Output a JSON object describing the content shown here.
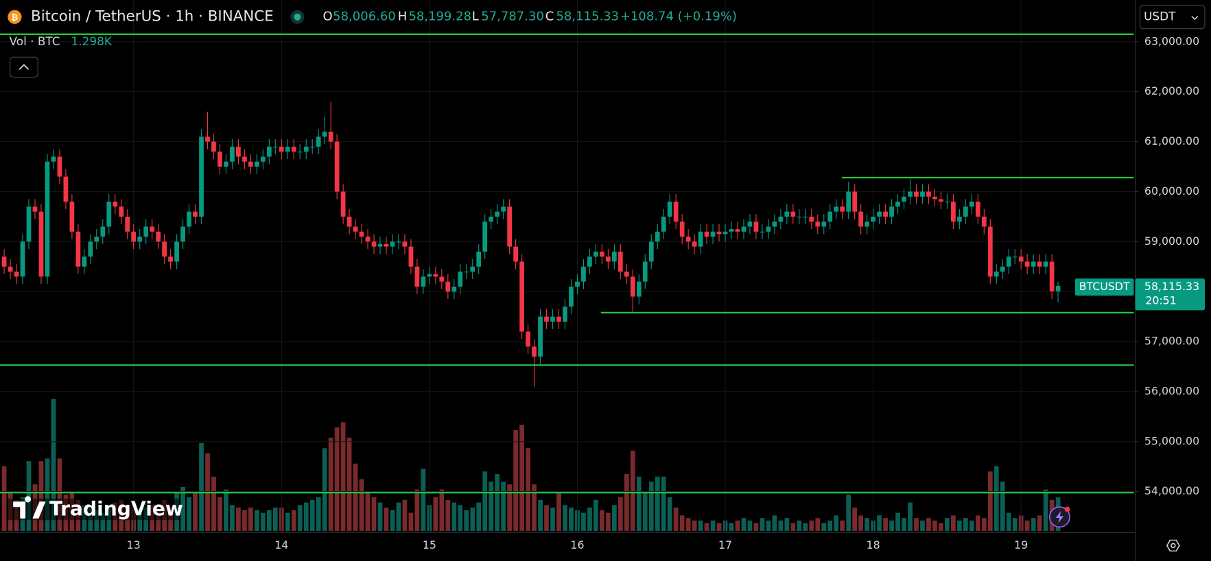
{
  "chart_data": {
    "type": "candlestick",
    "title": "Bitcoin / TetherUS · 1h · BINANCE",
    "categories": [
      null,
      null,
      null,
      null,
      null,
      null,
      null,
      null,
      null,
      null,
      null,
      null,
      null,
      null,
      null,
      null,
      null,
      null,
      null,
      null,
      null,
      "13",
      null,
      null,
      null,
      null,
      null,
      null,
      null,
      null,
      null,
      null,
      null,
      null,
      null,
      null,
      null,
      null,
      null,
      null,
      null,
      null,
      null,
      null,
      null,
      "14",
      null,
      null,
      null,
      null,
      null,
      null,
      null,
      null,
      null,
      null,
      null,
      null,
      null,
      null,
      null,
      null,
      null,
      null,
      null,
      null,
      null,
      null,
      null,
      "15",
      null,
      null,
      null,
      null,
      null,
      null,
      null,
      null,
      null,
      null,
      null,
      null,
      null,
      null,
      null,
      null,
      null,
      null,
      null,
      null,
      null,
      null,
      null,
      "16",
      null,
      null,
      null,
      null,
      null,
      null,
      null,
      null,
      null,
      null,
      null,
      null,
      null,
      null,
      null,
      null,
      null,
      null,
      null,
      null,
      null,
      null,
      null,
      "17",
      null,
      null,
      null,
      null,
      null,
      null,
      null,
      null,
      null,
      null,
      null,
      null,
      null,
      null,
      null,
      null,
      null,
      null,
      null,
      null,
      null,
      null,
      null,
      "18",
      null,
      null,
      null,
      null,
      null,
      null,
      null,
      null,
      null,
      null,
      null,
      null,
      null,
      null,
      null,
      null,
      null,
      null,
      null,
      null,
      null,
      null,
      null,
      "19",
      null,
      null,
      null,
      null,
      null,
      null
    ],
    "open": [
      58700,
      58500,
      58400,
      58300,
      59000,
      59700,
      59600,
      58300,
      60600,
      60700,
      60300,
      59800,
      59200,
      58500,
      58700,
      59000,
      59100,
      59300,
      59800,
      59700,
      59500,
      59200,
      59000,
      59100,
      59300,
      59200,
      59000,
      58700,
      58600,
      59000,
      59300,
      59600,
      59500,
      61100,
      61000,
      60800,
      60500,
      60600,
      60900,
      60700,
      60600,
      60500,
      60600,
      60700,
      60900,
      60900,
      60800,
      60900,
      60800,
      60800,
      60900,
      60900,
      61100,
      61200,
      61000,
      60000,
      59500,
      59300,
      59200,
      59100,
      59000,
      58900,
      58950,
      58900,
      59000,
      59000,
      58900,
      58500,
      58100,
      58300,
      58350,
      58300,
      58200,
      58000,
      58100,
      58400,
      58400,
      58500,
      58800,
      59400,
      59500,
      59600,
      59700,
      58900,
      58600,
      57200,
      56900,
      56700,
      57500,
      57400,
      57500,
      57400,
      57700,
      58100,
      58200,
      58500,
      58700,
      58800,
      58700,
      58600,
      58800,
      58400,
      58300,
      57900,
      58200,
      58600,
      59000,
      59200,
      59500,
      59800,
      59400,
      59100,
      59000,
      58900,
      59200,
      59100,
      59200,
      59150,
      59200,
      59250,
      59200,
      59300,
      59400,
      59200,
      59200,
      59300,
      59400,
      59500,
      59600,
      59500,
      59500,
      59500,
      59400,
      59300,
      59400,
      59600,
      59700,
      59600,
      60000,
      59600,
      59300,
      59400,
      59500,
      59600,
      59500,
      59700,
      59800,
      59900,
      60000,
      59900,
      60000,
      59900,
      59850,
      59800,
      59800,
      59400,
      59500,
      59700,
      59800,
      59500,
      59300,
      58300,
      58400,
      58500,
      58700,
      58700,
      58600,
      58500,
      58600,
      58500,
      58600,
      58006.6
    ],
    "high": [
      58850,
      58650,
      58550,
      59150,
      59850,
      59850,
      59750,
      60750,
      60850,
      60850,
      60450,
      59950,
      59350,
      58850,
      59150,
      59250,
      59450,
      59950,
      59950,
      59850,
      59650,
      59350,
      59250,
      59450,
      59450,
      59350,
      59150,
      58850,
      59150,
      59450,
      59750,
      59750,
      61250,
      61600,
      61150,
      60950,
      60750,
      61050,
      61050,
      60850,
      60750,
      60750,
      60850,
      61050,
      61050,
      61050,
      61050,
      61050,
      60950,
      61050,
      61050,
      61250,
      61500,
      61800,
      61150,
      60150,
      59650,
      59450,
      59350,
      59250,
      59150,
      59100,
      59100,
      59150,
      59150,
      59150,
      59050,
      58650,
      58450,
      58500,
      58500,
      58450,
      58350,
      58250,
      58550,
      58550,
      58650,
      58950,
      59550,
      59650,
      59750,
      59850,
      59850,
      59050,
      58750,
      57350,
      57050,
      57650,
      57650,
      57650,
      57650,
      57850,
      58250,
      58350,
      58650,
      58850,
      58950,
      58950,
      58850,
      58950,
      58950,
      58550,
      58450,
      58350,
      58750,
      59150,
      59350,
      59650,
      59950,
      59950,
      59550,
      59250,
      59150,
      59350,
      59350,
      59350,
      59350,
      59350,
      59400,
      59400,
      59450,
      59550,
      59550,
      59350,
      59450,
      59550,
      59650,
      59750,
      59750,
      59650,
      59650,
      59650,
      59550,
      59550,
      59750,
      59850,
      59850,
      60200,
      60150,
      59750,
      59550,
      59650,
      59750,
      59750,
      59850,
      59950,
      60050,
      60250,
      60150,
      60150,
      60150,
      60050,
      60000,
      59950,
      59950,
      59650,
      59850,
      59950,
      59950,
      59650,
      59450,
      58550,
      58650,
      58850,
      58850,
      58850,
      58750,
      58750,
      58750,
      58750,
      58750,
      58199.28
    ],
    "low": [
      58350,
      58250,
      58150,
      58150,
      58850,
      59450,
      58150,
      58150,
      60450,
      60150,
      59650,
      59050,
      58350,
      58350,
      58550,
      58850,
      58950,
      59150,
      59550,
      59350,
      59050,
      58850,
      58850,
      58950,
      59050,
      58850,
      58550,
      58450,
      58450,
      58850,
      59150,
      59350,
      59350,
      60850,
      60650,
      60350,
      60350,
      60450,
      60550,
      60450,
      60350,
      60350,
      60450,
      60550,
      60750,
      60650,
      60650,
      60650,
      60650,
      60650,
      60750,
      60750,
      60950,
      60850,
      59850,
      59350,
      59150,
      59050,
      58950,
      58850,
      58750,
      58750,
      58750,
      58750,
      58850,
      58750,
      58350,
      57950,
      57950,
      58150,
      58150,
      58050,
      57850,
      57850,
      57950,
      58250,
      58250,
      58350,
      58650,
      59250,
      59350,
      59450,
      58750,
      58450,
      57050,
      56750,
      56100,
      56550,
      57250,
      57250,
      57250,
      57250,
      57550,
      57950,
      58050,
      58350,
      58550,
      58550,
      58450,
      58450,
      58250,
      58150,
      57600,
      57750,
      58050,
      58450,
      58850,
      59050,
      59350,
      59250,
      58950,
      58850,
      58750,
      58750,
      58950,
      58950,
      59000,
      59000,
      59050,
      59050,
      59050,
      59150,
      59050,
      59050,
      59050,
      59150,
      59250,
      59350,
      59350,
      59350,
      59350,
      59250,
      59150,
      59150,
      59250,
      59450,
      59450,
      59450,
      59450,
      59150,
      59150,
      59250,
      59350,
      59350,
      59350,
      59550,
      59650,
      59750,
      59750,
      59750,
      59750,
      59700,
      59650,
      59650,
      59250,
      59250,
      59350,
      59550,
      59350,
      59150,
      58150,
      58150,
      58250,
      58350,
      58550,
      58450,
      58350,
      58350,
      58350,
      58350,
      57850,
      57787.3
    ],
    "close": [
      58500,
      58400,
      58300,
      59000,
      59700,
      59600,
      58300,
      60600,
      60700,
      60300,
      59800,
      59200,
      58500,
      58700,
      59000,
      59100,
      59300,
      59800,
      59700,
      59500,
      59200,
      59000,
      59100,
      59300,
      59200,
      59000,
      58700,
      58600,
      59000,
      59300,
      59600,
      59500,
      61100,
      61000,
      60800,
      60500,
      60600,
      60900,
      60700,
      60600,
      60500,
      60600,
      60700,
      60900,
      60900,
      60800,
      60900,
      60800,
      60800,
      60900,
      60900,
      61100,
      61200,
      61000,
      60000,
      59500,
      59300,
      59200,
      59100,
      59000,
      58900,
      58950,
      58900,
      59000,
      59000,
      58900,
      58500,
      58100,
      58300,
      58350,
      58300,
      58200,
      58000,
      58100,
      58400,
      58400,
      58500,
      58800,
      59400,
      59500,
      59600,
      59700,
      58900,
      58600,
      57200,
      56900,
      56700,
      57500,
      57400,
      57500,
      57400,
      57700,
      58100,
      58200,
      58500,
      58700,
      58800,
      58700,
      58600,
      58800,
      58400,
      58300,
      57900,
      58200,
      58600,
      59000,
      59200,
      59500,
      59800,
      59400,
      59100,
      59000,
      58900,
      59200,
      59100,
      59200,
      59150,
      59200,
      59250,
      59200,
      59300,
      59400,
      59200,
      59200,
      59300,
      59400,
      59500,
      59600,
      59500,
      59500,
      59500,
      59400,
      59300,
      59400,
      59600,
      59700,
      59600,
      60000,
      59600,
      59300,
      59400,
      59500,
      59600,
      59500,
      59700,
      59800,
      59900,
      60000,
      59900,
      60000,
      59900,
      59850,
      59800,
      59800,
      59400,
      59500,
      59700,
      59800,
      59500,
      59300,
      58300,
      58400,
      58500,
      58700,
      58700,
      58600,
      58500,
      58600,
      58500,
      58600,
      58006.6,
      58115.33
    ],
    "up_color": "#089981",
    "down_color": "#f23645",
    "volume": {
      "name": "Vol · BTC",
      "value_label": "1.298K",
      "up_color": "#0b5f55",
      "down_color": "#7a2a2d",
      "values": [
        2500,
        1500,
        1200,
        1300,
        2700,
        1800,
        2700,
        2800,
        5100,
        2800,
        1400,
        1500,
        1200,
        1000,
        900,
        800,
        700,
        900,
        1100,
        1200,
        1000,
        900,
        800,
        900,
        1000,
        800,
        1200,
        900,
        1500,
        1700,
        1300,
        1500,
        3400,
        3000,
        2100,
        1300,
        1600,
        1000,
        900,
        800,
        900,
        800,
        700,
        800,
        900,
        900,
        700,
        800,
        1000,
        1100,
        1200,
        1300,
        3200,
        3600,
        4000,
        4200,
        3600,
        2600,
        2000,
        1500,
        1300,
        1100,
        900,
        800,
        1100,
        1200,
        700,
        1600,
        2400,
        1000,
        1300,
        1600,
        1200,
        1100,
        1000,
        800,
        900,
        1100,
        2300,
        1900,
        2200,
        1900,
        1800,
        3900,
        4100,
        3200,
        1800,
        1200,
        1000,
        900,
        1500,
        1000,
        900,
        800,
        700,
        900,
        1200,
        800,
        700,
        1000,
        1300,
        2200,
        3100,
        2100,
        1500,
        1900,
        2100,
        2100,
        1300,
        900,
        600,
        500,
        400,
        400,
        300,
        400,
        300,
        400,
        300,
        400,
        500,
        400,
        300,
        500,
        400,
        600,
        400,
        500,
        300,
        400,
        300,
        400,
        500,
        300,
        400,
        600,
        400,
        1400,
        900,
        600,
        500,
        400,
        600,
        500,
        400,
        700,
        500,
        1100,
        500,
        400,
        500,
        400,
        300,
        500,
        600,
        400,
        500,
        400,
        600,
        500,
        2300,
        2500,
        1900,
        700,
        500,
        600,
        400,
        500,
        600,
        1600,
        1200,
        1298
      ]
    },
    "ylim": [
      53182,
      63834
    ],
    "yticks": [
      {
        "value": 54000,
        "label": "54,000.00"
      },
      {
        "value": 55000,
        "label": "55,000.00"
      },
      {
        "value": 56000,
        "label": "56,000.00"
      },
      {
        "value": 57000,
        "label": "57,000.00"
      },
      {
        "value": 58000,
        "label": "58,000.00"
      },
      {
        "value": 59000,
        "label": "59,000.00"
      },
      {
        "value": 60000,
        "label": "60,000.00"
      },
      {
        "value": 61000,
        "label": "61,000.00"
      },
      {
        "value": 62000,
        "label": "62,000.00"
      },
      {
        "value": 63000,
        "label": "63,000.00"
      }
    ],
    "grid": true,
    "hlines": {
      "color": "#22c93a",
      "values": [
        63150,
        60280,
        57580,
        56530,
        53980
      ]
    }
  },
  "legend": {
    "o_label": "O",
    "o": "58,006.60",
    "h_label": "H",
    "h": "58,199.28",
    "l_label": "L",
    "l": "57,787.30",
    "c_label": "C",
    "c": "58,115.33",
    "change": "+108.74 (+0.19%)"
  },
  "currency": "USDT",
  "price_label": {
    "symbol": "BTCUSDT",
    "price": "58,115.33",
    "countdown": "20:51"
  },
  "logo": "TradingView"
}
